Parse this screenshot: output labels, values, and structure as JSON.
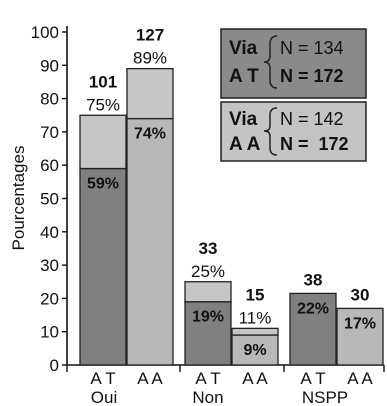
{
  "chart_data": {
    "type": "bar",
    "stacked": true,
    "ylabel": "Pourcentages",
    "ylim": [
      0,
      100
    ],
    "yticks": [
      "0",
      "10",
      "20",
      "30",
      "40",
      "50",
      "60",
      "70",
      "80",
      "90",
      "100"
    ],
    "groups": [
      {
        "label": "Oui",
        "bars": [
          {
            "label": "A T",
            "lower": 59,
            "total": 75,
            "lower_label": "59%",
            "total_label": "75%",
            "count": "101"
          },
          {
            "label": "A A",
            "lower": 74,
            "total": 89,
            "lower_label": "74%",
            "total_label": "89%",
            "count": "127"
          }
        ]
      },
      {
        "label": "Non",
        "bars": [
          {
            "label": "A T",
            "lower": 19,
            "total": 25,
            "lower_label": "19%",
            "total_label": "25%",
            "count": "33"
          },
          {
            "label": "A A",
            "lower": 9,
            "total": 11,
            "lower_label": "9%",
            "total_label": "11%",
            "count": "15"
          }
        ]
      },
      {
        "label": "NSPP",
        "bars": [
          {
            "label": "A T",
            "lower": 21.5,
            "total": 21.5,
            "lower_label": "22%",
            "total_label": "",
            "count": "38"
          },
          {
            "label": "A A",
            "lower": 17,
            "total": 17,
            "lower_label": "17%",
            "total_label": "",
            "count": "30"
          }
        ]
      }
    ],
    "legend": [
      {
        "via_line1": "Via",
        "via_line2": "A T",
        "n_partial": "N = 134",
        "n_total": "N = 172"
      },
      {
        "via_line1": "Via",
        "via_line2": "A A",
        "n_partial": "N = 142",
        "n_total": "N =  172"
      }
    ],
    "colors": {
      "at_lower": "#808080",
      "aa_lower": "#b8b8b8",
      "upper": "#c6c6c6",
      "aa_only": "#c0c0c0",
      "legend_at_bg": "#8a8a8a",
      "legend_aa_bg": "#c4c4c4"
    }
  }
}
